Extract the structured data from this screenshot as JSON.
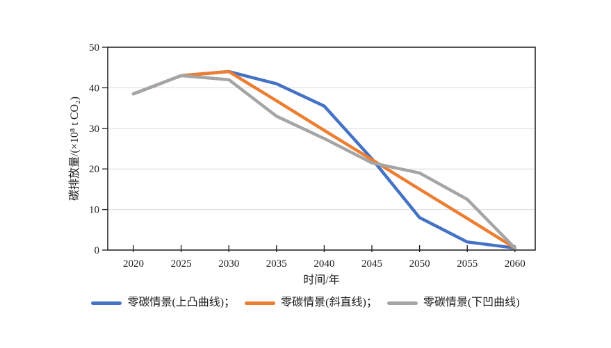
{
  "chart_data": {
    "type": "line",
    "title": "",
    "xlabel": "时间/年",
    "ylabel": "碳排放量/(×10⁸ t CO₂)",
    "x": [
      2020,
      2025,
      2030,
      2035,
      2040,
      2045,
      2050,
      2055,
      2060
    ],
    "xtick_labels": [
      "2020",
      "2025",
      "2030",
      "2035",
      "2040",
      "2045",
      "2050",
      "2055",
      "2060"
    ],
    "ylim": [
      0,
      50
    ],
    "yticks": [
      0,
      10,
      20,
      30,
      40,
      50
    ],
    "grid": "horizontal",
    "legend_position": "bottom",
    "legend_separator": "；",
    "series": [
      {
        "name": "零碳情景(上凸曲线)",
        "color": "#4472C4",
        "values": [
          38.5,
          43,
          44,
          41,
          35.5,
          22.5,
          8,
          2,
          0.5
        ]
      },
      {
        "name": "零碳情景(斜直线)",
        "color": "#ED7D31",
        "values": [
          38.5,
          43,
          44,
          36.8,
          29.5,
          22.3,
          15,
          7.8,
          0.5
        ]
      },
      {
        "name": "零碳情景(下凹曲线)",
        "color": "#A5A5A5",
        "values": [
          38.5,
          43,
          42,
          33,
          27.5,
          21.5,
          19,
          12.5,
          0.5
        ]
      }
    ]
  },
  "colors": {
    "axis": "#1a1a1a",
    "grid": "#d9d9d9",
    "background": "#ffffff",
    "tick_label": "#1a1a1a"
  }
}
